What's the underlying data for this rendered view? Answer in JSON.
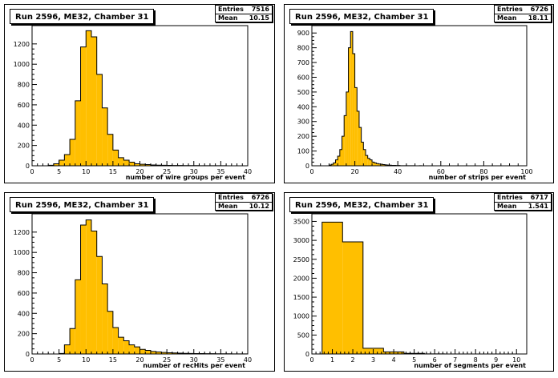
{
  "chart_data": [
    {
      "type": "bar",
      "title": "Run 2596, ME32, Chamber 31",
      "xlabel": "number of wire groups per event",
      "ylabel": "",
      "stats": {
        "entries_label": "Entries",
        "entries": "7516",
        "mean_label": "Mean",
        "mean": "10.15"
      },
      "xlim": [
        0,
        40
      ],
      "ylim": [
        0,
        1380
      ],
      "xticks": [
        0,
        5,
        10,
        15,
        20,
        25,
        30,
        35,
        40
      ],
      "yticks": [
        0,
        200,
        400,
        600,
        800,
        1000,
        1200
      ],
      "bin_width": 1,
      "bin_start": 0,
      "values": [
        0,
        0,
        0,
        5,
        20,
        55,
        110,
        260,
        640,
        1170,
        1330,
        1270,
        900,
        570,
        310,
        155,
        80,
        55,
        35,
        20,
        15,
        12,
        8,
        6,
        5,
        4,
        3,
        3,
        2,
        2,
        2,
        1,
        1,
        1,
        1,
        1,
        0,
        0,
        0,
        0
      ]
    },
    {
      "type": "bar",
      "title": "Run 2596, ME32, Chamber 31",
      "xlabel": "number of strips per event",
      "ylabel": "",
      "stats": {
        "entries_label": "Entries",
        "entries": "6726",
        "mean_label": "Mean",
        "mean": "18.11"
      },
      "xlim": [
        0,
        100
      ],
      "ylim": [
        0,
        950
      ],
      "xticks": [
        0,
        20,
        40,
        60,
        80,
        100
      ],
      "yticks": [
        0,
        100,
        200,
        300,
        400,
        500,
        600,
        700,
        800,
        900
      ],
      "bin_width": 1,
      "bin_start": 0,
      "values": [
        0,
        0,
        0,
        0,
        0,
        0,
        0,
        0,
        5,
        10,
        20,
        40,
        65,
        110,
        200,
        340,
        500,
        800,
        910,
        760,
        530,
        370,
        260,
        160,
        110,
        70,
        50,
        40,
        25,
        20,
        15,
        12,
        10,
        8,
        6,
        5,
        4,
        3,
        3,
        2,
        2,
        1,
        1,
        1,
        1,
        1,
        1,
        1,
        0,
        0,
        1,
        0,
        0,
        0,
        0,
        0,
        0,
        0,
        0,
        0,
        0,
        0,
        0,
        0,
        0,
        0,
        0,
        0,
        0,
        0,
        0,
        0,
        0,
        0,
        0,
        0,
        0,
        0,
        0,
        0,
        0,
        0,
        0,
        0,
        0,
        0,
        0,
        0,
        0,
        0,
        0,
        0,
        0,
        0,
        0,
        0,
        0,
        0,
        0,
        0
      ]
    },
    {
      "type": "bar",
      "title": "Run 2596, ME32, Chamber 31",
      "xlabel": "number of recHits per event",
      "ylabel": "",
      "stats": {
        "entries_label": "Entries",
        "entries": "6726",
        "mean_label": "Mean",
        "mean": "10.12"
      },
      "xlim": [
        0,
        40
      ],
      "ylim": [
        0,
        1380
      ],
      "xticks": [
        0,
        5,
        10,
        15,
        20,
        25,
        30,
        35,
        40
      ],
      "yticks": [
        0,
        200,
        400,
        600,
        800,
        1000,
        1200
      ],
      "bin_width": 1,
      "bin_start": 0,
      "values": [
        0,
        0,
        0,
        0,
        0,
        5,
        90,
        250,
        730,
        1270,
        1320,
        1210,
        960,
        690,
        420,
        260,
        165,
        130,
        90,
        70,
        45,
        35,
        25,
        20,
        15,
        12,
        10,
        8,
        6,
        5,
        4,
        4,
        3,
        3,
        2,
        2,
        2,
        1,
        1,
        1
      ]
    },
    {
      "type": "bar",
      "title": "Run 2596, ME32, Chamber 31",
      "xlabel": "number of segments per event",
      "ylabel": "",
      "stats": {
        "entries_label": "Entries",
        "entries": "6717",
        "mean_label": "Mean",
        "mean": "1.541"
      },
      "xlim": [
        0,
        10.5
      ],
      "ylim": [
        0,
        3700
      ],
      "xticks": [
        0,
        1,
        2,
        3,
        4,
        5,
        6,
        7,
        8,
        9,
        10
      ],
      "yticks": [
        0,
        500,
        1000,
        1500,
        2000,
        2500,
        3000,
        3500
      ],
      "bin_width": 1,
      "bin_start": 0.5,
      "values": [
        3480,
        2960,
        150,
        55,
        15,
        3,
        1,
        0,
        0,
        0
      ]
    }
  ],
  "style": {
    "fill": "#ffbf00",
    "line": "#000000"
  }
}
